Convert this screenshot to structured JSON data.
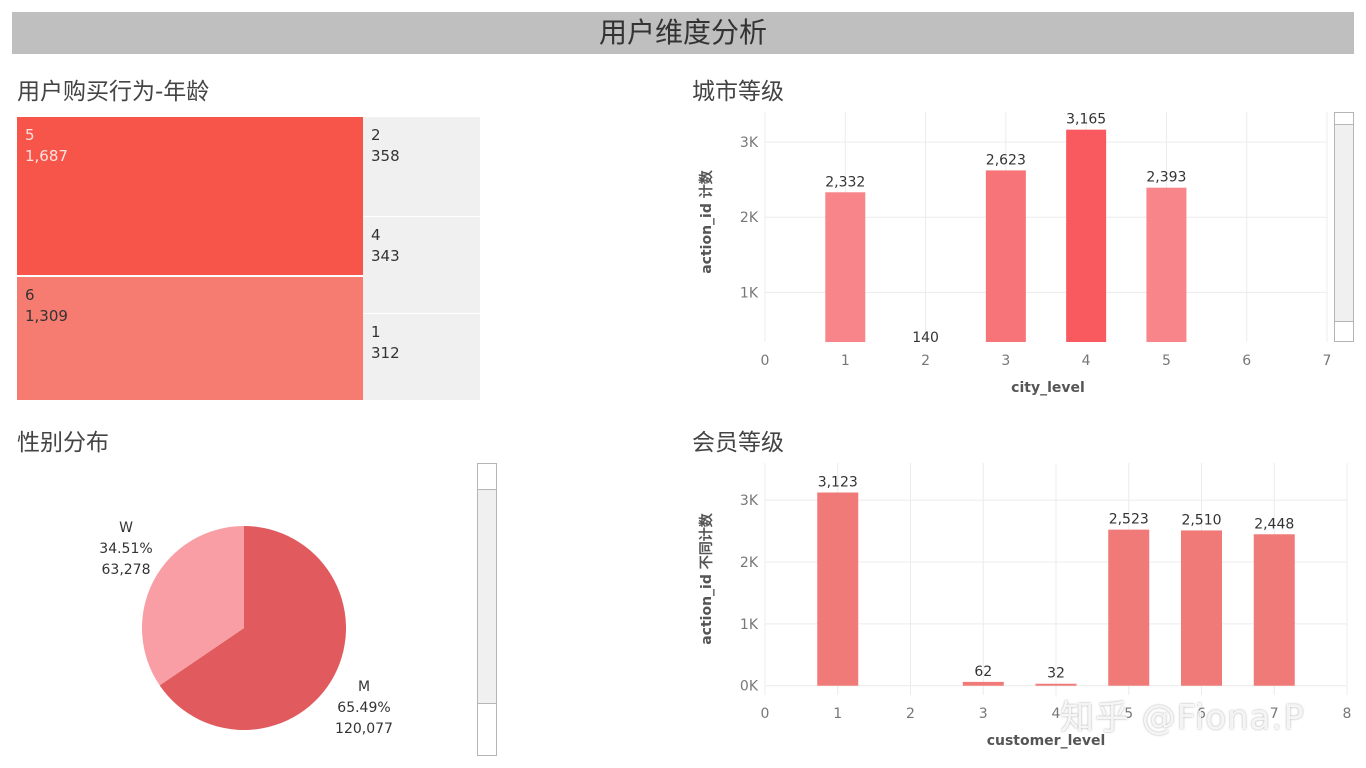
{
  "header": {
    "title": "用户维度分析"
  },
  "panels": {
    "age": {
      "title": "用户购买行为-年龄"
    },
    "city": {
      "title": "城市等级"
    },
    "gender": {
      "title": "性别分布"
    },
    "member": {
      "title": "会员等级"
    }
  },
  "watermark": "知乎 @Fiona.P",
  "colors": {
    "header_bg": "#bfbfbf",
    "tm_5": "#f8554a",
    "tm_6": "#f67b70",
    "tm_small": "#f0f0f0",
    "bar_light": "#f8858a",
    "bar_mid": "#f77478",
    "bar_dark": "#f95a60",
    "member_bar": "#ef7a78",
    "pie_m": "#e05a5e",
    "pie_w": "#f99ea4"
  },
  "chart_data": [
    {
      "type": "treemap",
      "title": "用户购买行为-年龄",
      "items": [
        {
          "label": "5",
          "value": 1687,
          "value_text": "1,687"
        },
        {
          "label": "6",
          "value": 1309,
          "value_text": "1,309"
        },
        {
          "label": "2",
          "value": 358,
          "value_text": "358"
        },
        {
          "label": "4",
          "value": 343,
          "value_text": "343"
        },
        {
          "label": "1",
          "value": 312,
          "value_text": "312"
        }
      ]
    },
    {
      "type": "bar",
      "title": "城市等级",
      "xlabel": "city_level",
      "ylabel": "action_id 计数",
      "xlim": [
        0,
        7
      ],
      "x_ticks": [
        "0",
        "1",
        "2",
        "3",
        "4",
        "5",
        "6",
        "7"
      ],
      "y_ticks": [
        "1K",
        "2K",
        "3K"
      ],
      "categories": [
        1,
        2,
        3,
        4,
        5
      ],
      "values": [
        2332,
        140,
        2623,
        3165,
        2393
      ],
      "labels": [
        "2,332",
        "140",
        "2,623",
        "3,165",
        "2,393"
      ],
      "ylim": [
        340,
        3400
      ]
    },
    {
      "type": "pie",
      "title": "性别分布",
      "slices": [
        {
          "label": "M",
          "percent": "65.49%",
          "value": 120077,
          "value_text": "120,077"
        },
        {
          "label": "W",
          "percent": "34.51%",
          "value": 63278,
          "value_text": "63,278"
        }
      ]
    },
    {
      "type": "bar",
      "title": "会员等级",
      "xlabel": "customer_level",
      "ylabel": "action_id 不同计数",
      "xlim": [
        0,
        8
      ],
      "x_ticks": [
        "0",
        "1",
        "2",
        "3",
        "4",
        "5",
        "6",
        "7",
        "8"
      ],
      "y_ticks": [
        "0K",
        "1K",
        "2K",
        "3K"
      ],
      "categories": [
        1,
        3,
        4,
        5,
        6,
        7
      ],
      "values": [
        3123,
        62,
        32,
        2523,
        2510,
        2448
      ],
      "labels": [
        "3,123",
        "62",
        "32",
        "2,523",
        "2,510",
        "2,448"
      ],
      "ylim": [
        -150,
        3600
      ]
    }
  ]
}
